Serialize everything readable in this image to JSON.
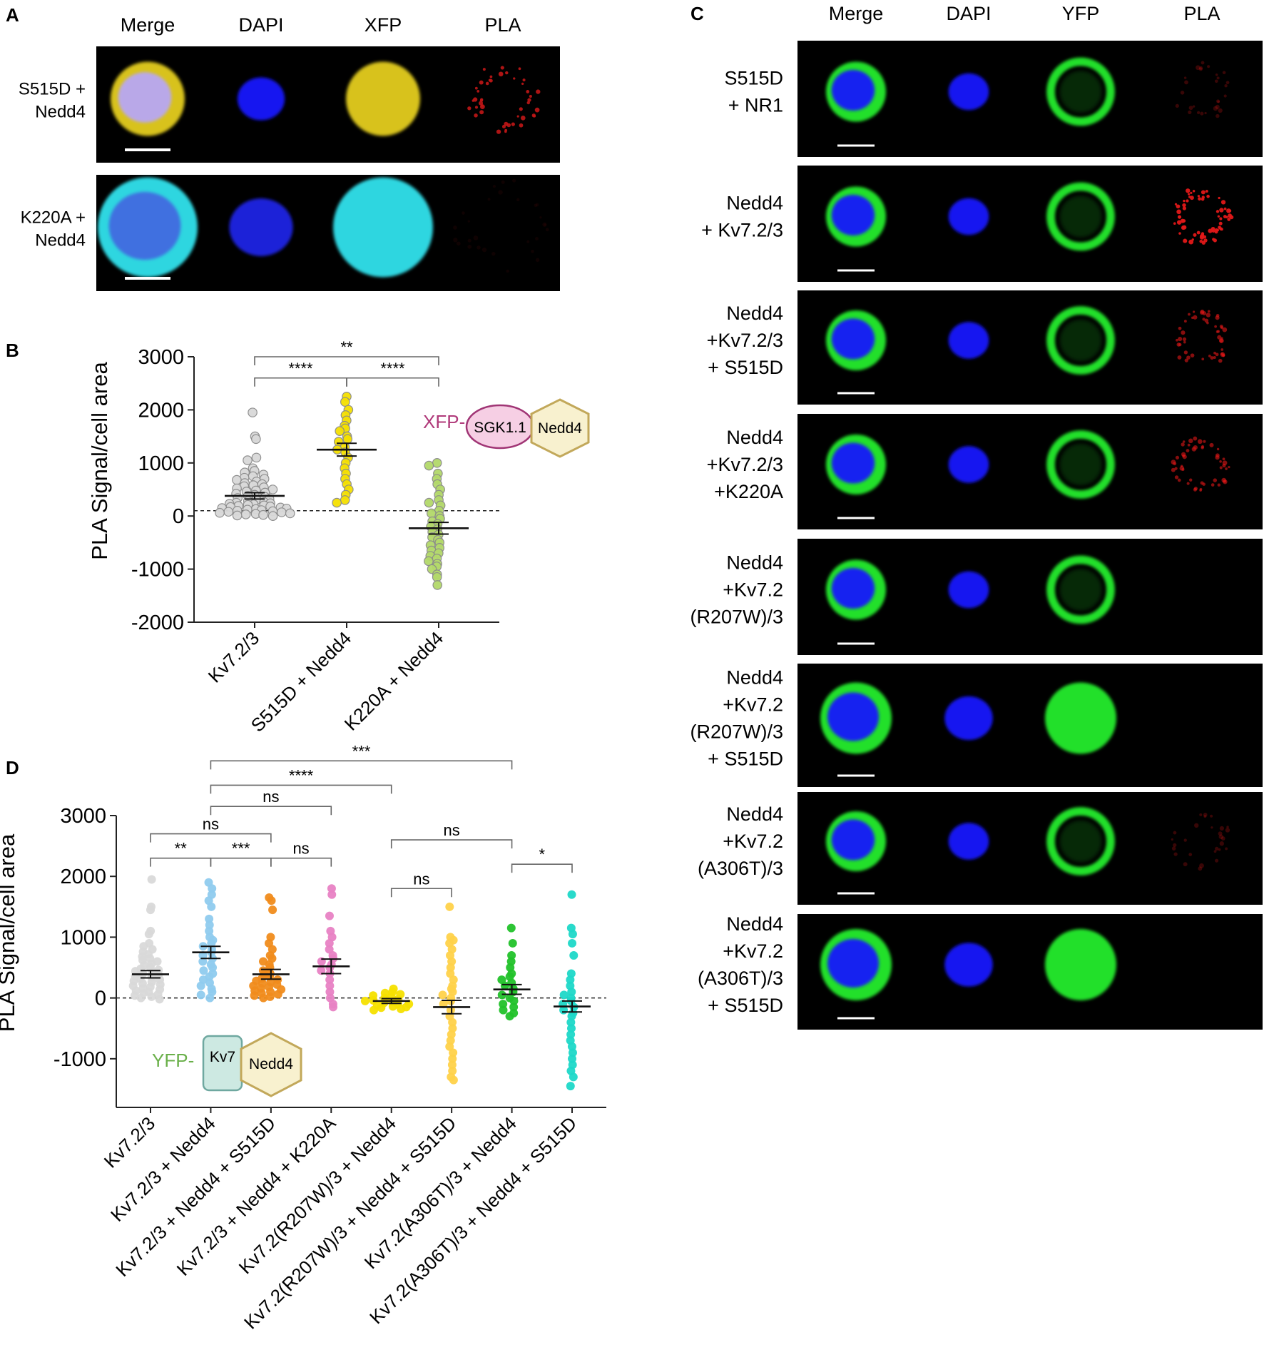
{
  "panel_a": {
    "letter": "A",
    "headers": [
      "Merge",
      "DAPI",
      "XFP",
      "PLA"
    ],
    "rows": [
      {
        "label_lines": [
          "S515D +",
          "Nedd4"
        ],
        "colors": [
          "#d8c21a",
          "#1418f0",
          "#d8c21a",
          "#c01616"
        ],
        "pla": "spots",
        "merge_core": "#b9a8e8"
      },
      {
        "label_lines": [
          "K220A +",
          "Nedd4"
        ],
        "colors": [
          "#2fd6e0",
          "#1a22d8",
          "#2fd6e0",
          "#3a0808"
        ],
        "pla": "faint",
        "merge_core": "#3f6fe0"
      }
    ]
  },
  "panel_c": {
    "letter": "C",
    "headers": [
      "Merge",
      "DAPI",
      "YFP",
      "PLA"
    ],
    "rows": [
      {
        "label_lines": [
          "S515D",
          "+ NR1"
        ],
        "pla": "faint"
      },
      {
        "label_lines": [
          "Nedd4",
          "+ Kv7.2/3"
        ],
        "pla": "strong"
      },
      {
        "label_lines": [
          "Nedd4",
          "+Kv7.2/3",
          "+ S515D"
        ],
        "pla": "medium"
      },
      {
        "label_lines": [
          "Nedd4",
          "+Kv7.2/3",
          "+K220A"
        ],
        "pla": "medium"
      },
      {
        "label_lines": [
          "Nedd4",
          "+Kv7.2",
          "(R207W)/3"
        ],
        "pla": "none"
      },
      {
        "label_lines": [
          "Nedd4",
          "+Kv7.2",
          "(R207W)/3",
          "+ S515D"
        ],
        "pla": "none"
      },
      {
        "label_lines": [
          "Nedd4",
          "+Kv7.2",
          "(A306T)/3"
        ],
        "pla": "faint"
      },
      {
        "label_lines": [
          "Nedd4",
          "+Kv7.2",
          "(A306T)/3",
          "+ S515D"
        ],
        "pla": "none"
      }
    ]
  },
  "panel_b": {
    "letter": "B",
    "schematic": {
      "prefix": "XFP-",
      "oval": "SGK1.1",
      "hex": "Nedd4"
    }
  },
  "panel_d": {
    "letter": "D",
    "schematic": {
      "prefix": "YFP-",
      "box": "Kv7",
      "hex": "Nedd4"
    }
  },
  "chart_data": [
    {
      "type": "scatter",
      "panel": "B",
      "ylabel": "PLA Signal/cell area",
      "ylim": [
        -2000,
        3000
      ],
      "yticks": [
        -2000,
        -1000,
        0,
        1000,
        2000,
        3000
      ],
      "categories": [
        "Kv7.2/3",
        "S515D + Nedd4",
        "K220A + Nedd4"
      ],
      "colors": [
        "#d9d9d9",
        "#f5e000",
        "#b3d96a"
      ],
      "means": [
        380,
        1250,
        -230
      ],
      "sem": [
        60,
        120,
        110
      ],
      "reference_line": 100,
      "series": [
        {
          "values": [
            1950,
            1500,
            1450,
            1100,
            1050,
            900,
            850,
            820,
            780,
            750,
            720,
            700,
            680,
            650,
            620,
            600,
            580,
            560,
            540,
            520,
            500,
            480,
            460,
            440,
            420,
            400,
            380,
            360,
            340,
            320,
            300,
            280,
            260,
            250,
            240,
            230,
            220,
            210,
            200,
            190,
            180,
            170,
            160,
            150,
            140,
            130,
            120,
            110,
            100,
            90,
            80,
            70,
            60,
            50,
            40,
            30,
            20,
            10,
            0
          ]
        },
        {
          "values": [
            2250,
            2150,
            2000,
            1900,
            1800,
            1700,
            1650,
            1600,
            1500,
            1450,
            1400,
            1300,
            1250,
            1200,
            1100,
            1000,
            900,
            800,
            700,
            600,
            500,
            400,
            300,
            250
          ]
        },
        {
          "values": [
            1000,
            950,
            800,
            700,
            600,
            500,
            400,
            300,
            250,
            200,
            100,
            50,
            0,
            -50,
            -100,
            -150,
            -200,
            -250,
            -300,
            -350,
            -400,
            -450,
            -500,
            -550,
            -600,
            -650,
            -700,
            -750,
            -800,
            -850,
            -900,
            -950,
            -1000,
            -1100,
            -1150,
            -1300
          ]
        }
      ],
      "comparisons": [
        {
          "from": 0,
          "to": 2,
          "label": "**",
          "y": 3000
        },
        {
          "from": 0,
          "to": 1,
          "label": "****",
          "y": 2600
        },
        {
          "from": 1,
          "to": 2,
          "label": "****",
          "y": 2600
        }
      ]
    },
    {
      "type": "scatter",
      "panel": "D",
      "ylabel": "PLA Signal/cell area",
      "ylim": [
        -1800,
        3000
      ],
      "yticks": [
        -1000,
        0,
        1000,
        2000,
        3000
      ],
      "categories": [
        "Kv7.2/3",
        "Kv7.2/3 + Nedd4",
        "Kv7.2/3 + Nedd4 + S515D",
        "Kv7.2/3 + Nedd4 + K220A",
        "Kv7.2(R207W)/3 + Nedd4",
        "Kv7.2(R207W)/3 + Nedd4 + S515D",
        "Kv7.2(A306T)/3 + Nedd4",
        "Kv7.2(A306T)/3 + Nedd4 + S515D"
      ],
      "colors": [
        "#d9d9d9",
        "#8fcbee",
        "#f08c1c",
        "#e882c4",
        "#f5e000",
        "#ffd24a",
        "#22c22a",
        "#1ed8c8"
      ],
      "means": [
        390,
        750,
        390,
        520,
        -50,
        -150,
        140,
        -140
      ],
      "sem": [
        60,
        100,
        80,
        120,
        40,
        110,
        80,
        90
      ],
      "reference_line": 0,
      "series": [
        {
          "values": [
            1950,
            1500,
            1450,
            1100,
            1050,
            900,
            850,
            800,
            760,
            720,
            680,
            650,
            620,
            600,
            560,
            540,
            500,
            480,
            460,
            440,
            420,
            400,
            380,
            360,
            340,
            320,
            300,
            280,
            260,
            240,
            220,
            200,
            180,
            160,
            140,
            120,
            100,
            80,
            60,
            40,
            20,
            0,
            -20
          ]
        },
        {
          "values": [
            1900,
            1800,
            1700,
            1600,
            1500,
            1300,
            1200,
            1100,
            1000,
            950,
            900,
            850,
            800,
            750,
            700,
            650,
            600,
            550,
            500,
            450,
            400,
            350,
            300,
            250,
            200,
            150,
            100,
            50,
            0
          ]
        },
        {
          "values": [
            1650,
            1600,
            1450,
            1000,
            900,
            800,
            700,
            650,
            600,
            550,
            500,
            450,
            400,
            380,
            350,
            320,
            300,
            280,
            260,
            240,
            220,
            200,
            180,
            160,
            140,
            120,
            100,
            80,
            60,
            40,
            20,
            0
          ]
        },
        {
          "values": [
            1800,
            1700,
            1350,
            1100,
            1000,
            900,
            800,
            700,
            650,
            600,
            550,
            500,
            450,
            400,
            300,
            200,
            100,
            0,
            -100,
            -150
          ]
        },
        {
          "values": [
            150,
            100,
            80,
            60,
            40,
            20,
            0,
            -20,
            -40,
            -60,
            -80,
            -100,
            -120,
            -140,
            -160,
            -180,
            -200,
            -150,
            -100,
            -50
          ]
        },
        {
          "values": [
            1500,
            1000,
            950,
            900,
            800,
            700,
            600,
            500,
            400,
            300,
            200,
            150,
            100,
            50,
            0,
            -50,
            -100,
            -200,
            -300,
            -400,
            -500,
            -600,
            -700,
            -800,
            -900,
            -1000,
            -1100,
            -1200,
            -1300,
            -1350
          ]
        },
        {
          "values": [
            1150,
            900,
            700,
            600,
            500,
            400,
            350,
            300,
            250,
            200,
            150,
            100,
            50,
            0,
            -50,
            -100,
            -150,
            -200,
            -250,
            -300
          ]
        },
        {
          "values": [
            1700,
            1150,
            1050,
            900,
            700,
            400,
            300,
            200,
            100,
            50,
            0,
            -50,
            -100,
            -150,
            -200,
            -250,
            -300,
            -400,
            -500,
            -600,
            -700,
            -800,
            -900,
            -1000,
            -1100,
            -1200,
            -1300,
            -1450
          ]
        }
      ],
      "comparisons": [
        {
          "from": 1,
          "to": 6,
          "label": "***",
          "y": 3900
        },
        {
          "from": 1,
          "to": 4,
          "label": "****",
          "y": 3500
        },
        {
          "from": 1,
          "to": 3,
          "label": "ns",
          "y": 3150
        },
        {
          "from": 0,
          "to": 2,
          "label": "ns",
          "y": 2700
        },
        {
          "from": 0,
          "to": 1,
          "label": "**",
          "y": 2300
        },
        {
          "from": 1,
          "to": 2,
          "label": "***",
          "y": 2300
        },
        {
          "from": 2,
          "to": 3,
          "label": "ns",
          "y": 2300
        },
        {
          "from": 4,
          "to": 6,
          "label": "ns",
          "y": 2600
        },
        {
          "from": 4,
          "to": 5,
          "label": "ns",
          "y": 1800
        },
        {
          "from": 6,
          "to": 7,
          "label": "*",
          "y": 2200
        }
      ]
    }
  ]
}
